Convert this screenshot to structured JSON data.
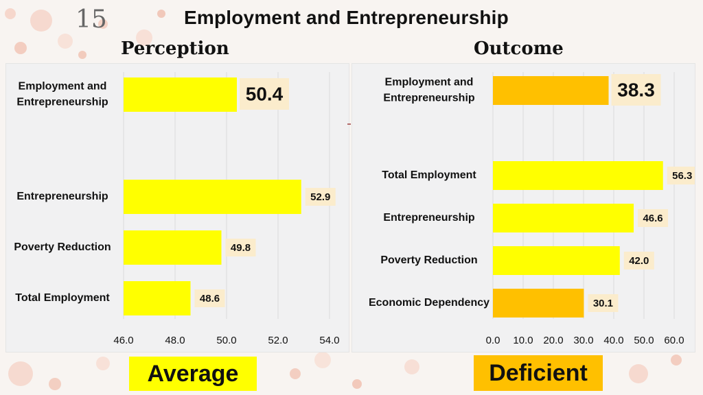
{
  "slide_number": "15",
  "title": "Employment and Entrepreneurship",
  "colors": {
    "yellow": "#ffff00",
    "orange": "#ffc000",
    "label_bg": "#fbeccc",
    "panel_bg": "#f1f1f2"
  },
  "chart_data": [
    {
      "type": "bar",
      "orientation": "horizontal",
      "title": "Perception",
      "categories": [
        "Employment and Entrepreneurship",
        "",
        "Entrepreneurship",
        "Poverty Reduction",
        "Total Employment"
      ],
      "series": [
        {
          "values": [
            50.4,
            null,
            52.9,
            49.8,
            48.6
          ]
        }
      ],
      "data_labels": [
        "50.4",
        "",
        "52.9",
        "49.8",
        "48.6"
      ],
      "bar_colors": [
        "#ffff00",
        "",
        "#ffff00",
        "#ffff00",
        "#ffff00"
      ],
      "xlim": [
        46,
        54
      ],
      "xticks": [
        "46.0",
        "48.0",
        "50.0",
        "52.0",
        "54.0"
      ],
      "tick_values": [
        46,
        48,
        50,
        52,
        54
      ],
      "grid": true,
      "xlabel": "",
      "ylabel": ""
    },
    {
      "type": "bar",
      "orientation": "horizontal",
      "title": "Outcome",
      "categories": [
        "Employment and Entrepreneurship",
        "",
        "Total Employment",
        "Entrepreneurship",
        "Poverty Reduction",
        "Economic Dependency"
      ],
      "series": [
        {
          "values": [
            38.3,
            null,
            56.3,
            46.6,
            42.0,
            30.1
          ]
        }
      ],
      "data_labels": [
        "38.3",
        "",
        "56.3",
        "46.6",
        "42.0",
        "30.1"
      ],
      "bar_colors": [
        "#ffc000",
        "",
        "#ffff00",
        "#ffff00",
        "#ffff00",
        "#ffc000"
      ],
      "xlim": [
        0,
        60
      ],
      "xticks": [
        "0.0",
        "10.0",
        "20.0",
        "30.0",
        "40.0",
        "50.0",
        "60.0"
      ],
      "tick_values": [
        0,
        10,
        20,
        30,
        40,
        50,
        60
      ],
      "grid": true,
      "xlabel": "",
      "ylabel": ""
    }
  ],
  "ratings": {
    "perception": "Average",
    "outcome": "Deficient"
  }
}
